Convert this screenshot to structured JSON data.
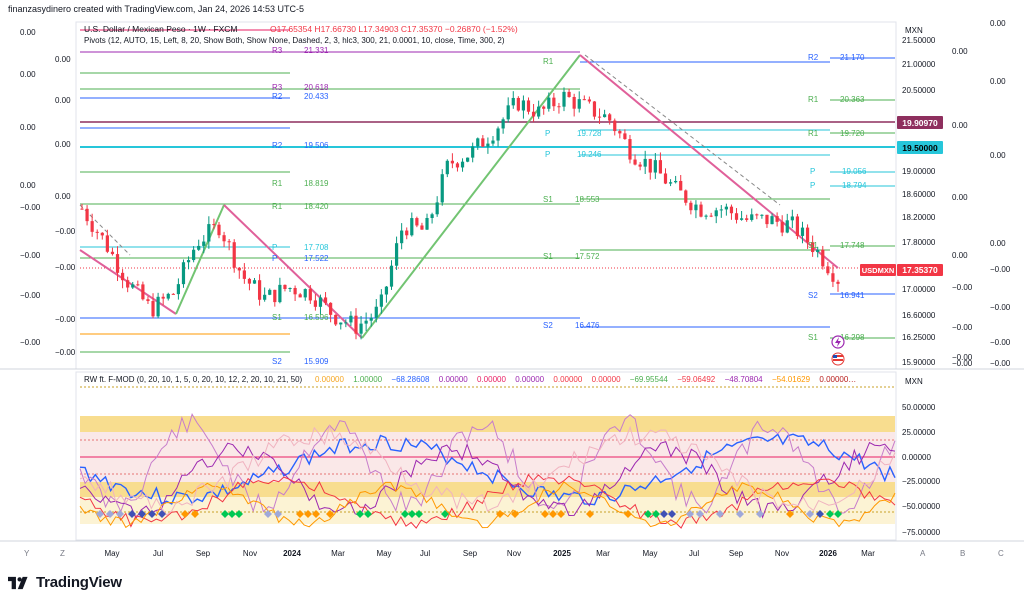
{
  "header": {
    "created_by": "finanzasydinero created with TradingView.com, Jan 24, 2026 14:53 UTC-5"
  },
  "main_pane": {
    "symbol": "U.S. Dollar / Mexican Peso · 1W · FXCM",
    "ohlc": "O17.65354  H17.66730  L17.34903  C17.35370  −0.26870 (−1.52%)",
    "pivots_label": "Pivots (12, AUTO, 15, Left, 8, 20, Show Both, Show None, Dashed, 2, 3, hlc3, 300, 21, 0.0001, 10, close, Time, 300, 2)",
    "currency": "MXN",
    "price_ticks": [
      "21.50000",
      "21.00000",
      "20.50000",
      "19.00000",
      "18.60000",
      "18.20000",
      "17.80000",
      "17.00000",
      "16.60000",
      "16.25000",
      "15.90000"
    ],
    "left_zero_labels": [
      "0.00",
      "0.00",
      "0.00",
      "0.00",
      "0.00",
      "0.00",
      "0.00",
      "0.00",
      "−0.00",
      "−0.00",
      "−0.00",
      "−0.00",
      "−0.00",
      "−0.00",
      "−0.00",
      "−0.00"
    ],
    "right_zero_labels": [
      "0.00",
      "0.00",
      "0.00",
      "0.00",
      "0.00",
      "0.00",
      "0.00",
      "0.00",
      "−0.00",
      "−0.00",
      "−0.00",
      "−0.00",
      "−0.00",
      "−0.00",
      "−0.00",
      "−0.00"
    ],
    "price_badges": {
      "upper": "19.90970",
      "teal": "19.50000",
      "symbol_tag": "USDMXN",
      "last": "17.35370"
    }
  },
  "pivot_labels": [
    {
      "tag": "R3",
      "value": "21.331"
    },
    {
      "tag": "R3",
      "value": "20.618"
    },
    {
      "tag": "R2",
      "value": "20.433"
    },
    {
      "tag": "R2",
      "value": "19.506"
    },
    {
      "tag": "R1",
      "value": "18.819"
    },
    {
      "tag": "R1",
      "value": "18.420"
    },
    {
      "tag": "P",
      "value": "17.708"
    },
    {
      "tag": "P",
      "value": "17.522"
    },
    {
      "tag": "S1",
      "value": "16.596"
    },
    {
      "tag": "S2",
      "value": "15.909"
    },
    {
      "tag": "R1",
      "value": ""
    },
    {
      "tag": "P",
      "value": "19.728"
    },
    {
      "tag": "P",
      "value": "19.246"
    },
    {
      "tag": "S1",
      "value": "18.553"
    },
    {
      "tag": "S1",
      "value": "17.572"
    },
    {
      "tag": "S2",
      "value": "16.476"
    },
    {
      "tag": "R2",
      "value": "21.170"
    },
    {
      "tag": "R1",
      "value": "20.363"
    },
    {
      "tag": "R1",
      "value": "19.720"
    },
    {
      "tag": "P",
      "value": "19.056"
    },
    {
      "tag": "P",
      "value": "18.794"
    },
    {
      "tag": "S1",
      "value": "17.748"
    },
    {
      "tag": "S2",
      "value": "16.941"
    },
    {
      "tag": "S1",
      "value": "16.298"
    }
  ],
  "indicator_pane": {
    "title": "RW ft. F-MOD (0, 20, 10, 1, 5, 0, 20, 10, 12, 2, 20, 10, 21, 50)",
    "values": [
      {
        "text": "0.00000",
        "color": "#f5a623"
      },
      {
        "text": "1.00000",
        "color": "#4caf50"
      },
      {
        "text": "−68.28608",
        "color": "#2962ff"
      },
      {
        "text": "0.00000",
        "color": "#9c27b0"
      },
      {
        "text": "0.00000",
        "color": "#e91e63"
      },
      {
        "text": "0.00000",
        "color": "#9c27b0"
      },
      {
        "text": "0.00000",
        "color": "#f23645"
      },
      {
        "text": "0.00000",
        "color": "#f23645"
      },
      {
        "text": "−69.95544",
        "color": "#4caf50"
      },
      {
        "text": "−59.06492",
        "color": "#f23645"
      },
      {
        "text": "−48.70804",
        "color": "#9c27b0"
      },
      {
        "text": "−54.01629",
        "color": "#ff9800"
      },
      {
        "text": "0.00000…",
        "color": "#b71c1c"
      }
    ],
    "currency": "MXN",
    "ticks": [
      "50.00000",
      "25.00000",
      "0.00000",
      "−25.00000",
      "−50.00000",
      "−75.00000"
    ]
  },
  "time_axis": {
    "labels": [
      "May",
      "Jul",
      "Sep",
      "Nov",
      "2024",
      "Mar",
      "May",
      "Jul",
      "Sep",
      "Nov",
      "2025",
      "Mar",
      "May",
      "Jul",
      "Sep",
      "Nov",
      "2026",
      "Mar"
    ],
    "bold": [
      "2024",
      "2025",
      "2026"
    ]
  },
  "footer_letters": {
    "left1": "Y",
    "left2": "Z",
    "right1": "A",
    "right2": "B",
    "right3": "C"
  },
  "brand": "TradingView",
  "chart_data": {
    "type": "candlestick",
    "title": "U.S. Dollar / Mexican Peso · 1W · FXCM",
    "x_start": "2023-04",
    "x_end": "2026-03",
    "ylim": [
      15.8,
      21.6
    ],
    "y_scale": "log-like price scale",
    "close_path": [
      [
        "2023-04",
        18.6
      ],
      [
        "2023-05",
        18.0
      ],
      [
        "2023-06",
        17.3
      ],
      [
        "2023-07",
        16.8
      ],
      [
        "2023-08",
        17.1
      ],
      [
        "2023-09",
        18.0
      ],
      [
        "2023-10",
        18.3
      ],
      [
        "2023-11",
        17.4
      ],
      [
        "2023-12",
        17.0
      ],
      [
        "2024-01",
        17.2
      ],
      [
        "2024-02",
        17.1
      ],
      [
        "2024-03",
        16.7
      ],
      [
        "2024-04",
        16.5
      ],
      [
        "2024-05",
        16.8
      ],
      [
        "2024-06",
        18.3
      ],
      [
        "2024-07",
        18.2
      ],
      [
        "2024-08",
        19.4
      ],
      [
        "2024-09",
        19.6
      ],
      [
        "2024-10",
        20.0
      ],
      [
        "2024-11",
        20.5
      ],
      [
        "2024-12",
        20.3
      ],
      [
        "2025-01",
        20.6
      ],
      [
        "2025-02",
        20.4
      ],
      [
        "2025-03",
        20.2
      ],
      [
        "2025-04",
        19.6
      ],
      [
        "2025-05",
        19.3
      ],
      [
        "2025-06",
        18.9
      ],
      [
        "2025-07",
        18.6
      ],
      [
        "2025-08",
        18.6
      ],
      [
        "2025-09",
        18.4
      ],
      [
        "2025-10",
        18.4
      ],
      [
        "2025-11",
        18.3
      ],
      [
        "2025-12",
        17.9
      ],
      [
        "2026-01",
        17.35
      ]
    ],
    "last_close": 17.3537,
    "last_change": -0.2687,
    "last_change_pct": -1.52
  }
}
